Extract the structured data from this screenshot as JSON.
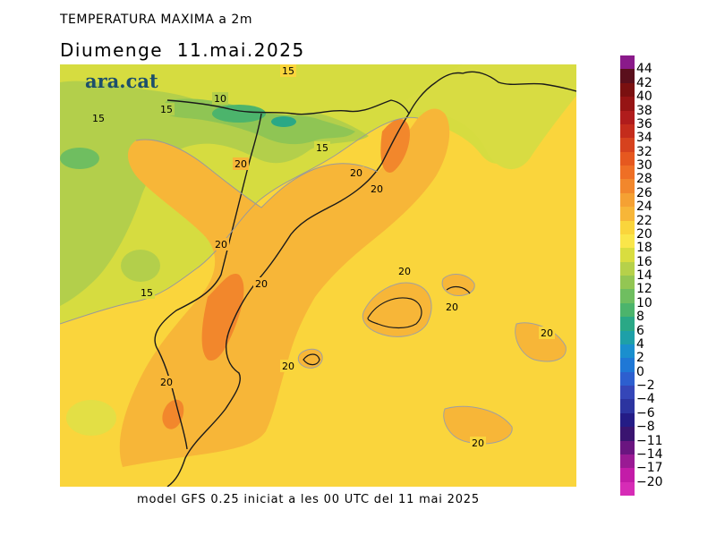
{
  "title": "TEMPERATURA MAXIMA a 2m",
  "date": "Diumenge  11.mai.2025",
  "logo": "ara.cat",
  "footer": "model GFS 0.25 iniciat a les 00 UTC del 11 mai 2025",
  "colorbar": {
    "labels": [
      "44",
      "42",
      "40",
      "38",
      "36",
      "34",
      "32",
      "30",
      "28",
      "26",
      "24",
      "22",
      "20",
      "18",
      "16",
      "14",
      "12",
      "10",
      "8",
      "6",
      "4",
      "2",
      "0",
      "−2",
      "−4",
      "−6",
      "−8",
      "−11",
      "−14",
      "−17",
      "−20"
    ],
    "colors": [
      "#8a1a8a",
      "#5a0f1c",
      "#7a1010",
      "#961414",
      "#b01c1c",
      "#c42c1c",
      "#d6421e",
      "#e6581f",
      "#ef6f25",
      "#f2872c",
      "#f5a133",
      "#f7b638",
      "#fad53c",
      "#fae64a",
      "#d9dd3f",
      "#b6d14a",
      "#93c653",
      "#6fbe60",
      "#4cb46c",
      "#2aa886",
      "#1ea0a8",
      "#1a8fce",
      "#1f78d6",
      "#2d5fcf",
      "#3546b8",
      "#2c34a0",
      "#241c86",
      "#3a1470",
      "#6a1580",
      "#9a1a94",
      "#c31ca8",
      "#d62cb6"
    ]
  },
  "contour_labels": [
    {
      "text": "15"
    },
    {
      "text": "10"
    },
    {
      "text": "15"
    },
    {
      "text": "15"
    },
    {
      "text": "15"
    },
    {
      "text": "20"
    },
    {
      "text": "20"
    },
    {
      "text": "20"
    },
    {
      "text": "20"
    },
    {
      "text": "20"
    },
    {
      "text": "15"
    },
    {
      "text": "20"
    },
    {
      "text": "20"
    },
    {
      "text": "20"
    },
    {
      "text": "20"
    },
    {
      "text": "20"
    },
    {
      "text": "20"
    }
  ]
}
